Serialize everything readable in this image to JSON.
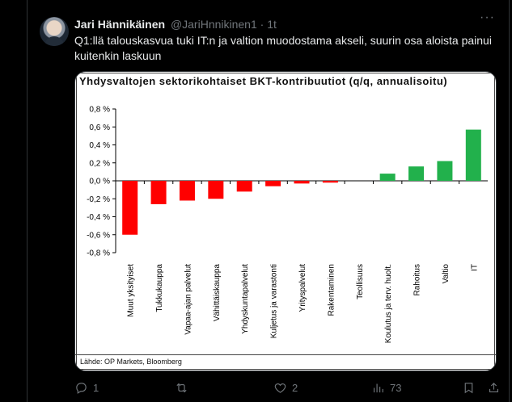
{
  "tweet": {
    "author_name": "Jari Hännikäinen",
    "author_handle": "@JariHnnikinen1",
    "separator": "·",
    "time": "1t",
    "more_label": "···",
    "text": "Q1:llä talouskasvua tuki IT:n ja valtion muodostama akseli, suurin osa aloista painui kuitenkin laskuun"
  },
  "chart_card": {
    "source": "Lähde: OP Markets, Bloomberg"
  },
  "chart_data": {
    "type": "bar",
    "title": "Yhdysvaltojen sektorikohtaiset BKT-kontribuutiot (q/q, annualisoitu)",
    "categories": [
      "Muut yksityiset",
      "Tukkukauppa",
      "Vapaa-ajan palvelut",
      "Vähittäiskauppa",
      "Yhdyskuntapalvelut",
      "Kuljetus ja varastonti",
      "Yrityspalvelut",
      "Rakentaminen",
      "Teollisuus",
      "Koulutus ja terv. huolt.",
      "Rahoitus",
      "Valtio",
      "IT"
    ],
    "values": [
      -0.6,
      -0.26,
      -0.22,
      -0.2,
      -0.12,
      -0.06,
      -0.03,
      -0.02,
      0.0,
      0.08,
      0.16,
      0.22,
      0.57
    ],
    "ylim": [
      -0.8,
      0.8
    ],
    "yticks": [
      "0,8 %",
      "0,6 %",
      "0,4 %",
      "0,2 %",
      "0,0 %",
      "-0,2 %",
      "-0,4 %",
      "-0,6 %",
      "-0,8 %"
    ],
    "ytick_values": [
      0.8,
      0.6,
      0.4,
      0.2,
      0.0,
      -0.2,
      -0.4,
      -0.6,
      -0.8
    ],
    "negative_color": "#ff0000",
    "positive_color": "#22b14c",
    "grid": false,
    "xlabel": "",
    "ylabel": ""
  },
  "actions": {
    "reply_count": "1",
    "retweet_count": "",
    "like_count": "2",
    "views_count": "73"
  }
}
